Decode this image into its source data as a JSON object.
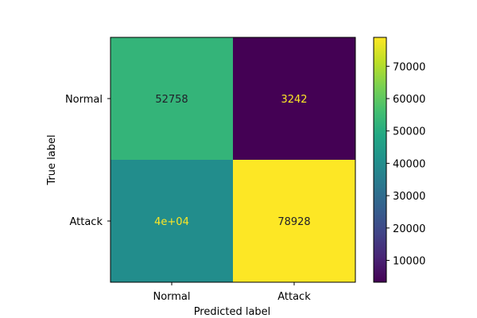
{
  "chart_data": {
    "type": "heatmap",
    "title": "",
    "xlabel": "Predicted label",
    "ylabel": "True label",
    "x_categories": [
      "Normal",
      "Attack"
    ],
    "y_categories": [
      "Normal",
      "Attack"
    ],
    "values": [
      [
        52758,
        3242
      ],
      [
        40000,
        78928
      ]
    ],
    "cell_labels": [
      [
        "52758",
        "3242"
      ],
      [
        "4e+04",
        "78928"
      ]
    ],
    "colormap": "viridis",
    "color_range": [
      3242,
      78928
    ],
    "colorbar_ticks": [
      10000,
      20000,
      30000,
      40000,
      50000,
      60000,
      70000
    ],
    "colorbar_tick_labels": [
      "10000",
      "20000",
      "30000",
      "40000",
      "50000",
      "60000",
      "70000"
    ],
    "text_colors": {
      "on_dark": "#fde725",
      "on_light": "#21202a"
    }
  }
}
